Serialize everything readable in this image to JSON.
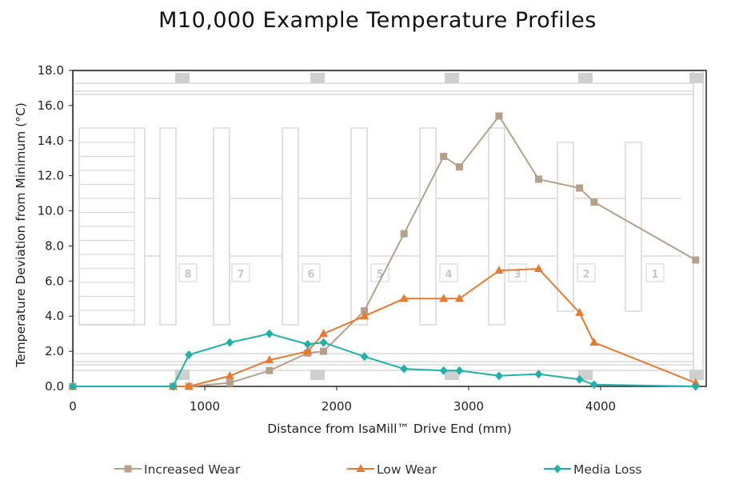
{
  "chart_data": {
    "type": "line",
    "title": "M10,000 Example Temperature Profiles",
    "xlabel": "Distance from IsaMill™ Drive End (mm)",
    "ylabel": "Temperature Deviation from Minimum (°C)",
    "xlim": [
      0,
      4800
    ],
    "ylim": [
      0,
      18
    ],
    "x_ticks": [
      "0",
      "1000",
      "2000",
      "3000",
      "4000"
    ],
    "y_ticks": [
      "0.0",
      "2.0",
      "4.0",
      "6.0",
      "8.0",
      "10.0",
      "12.0",
      "14.0",
      "16.0",
      "18.0"
    ],
    "grid": false,
    "legend": "bottom",
    "background_disc_labels": [
      "8",
      "7",
      "6",
      "5",
      "4",
      "3",
      "2",
      "1"
    ],
    "series": [
      {
        "name": "Increased Wear",
        "color": "#b5a08a",
        "marker": "square",
        "x": [
          0,
          760,
          880,
          1190,
          1490,
          1780,
          1900,
          2210,
          2510,
          2810,
          2930,
          3230,
          3530,
          3840,
          3950,
          4720
        ],
        "y": [
          0.0,
          0.0,
          0.0,
          0.2,
          0.9,
          1.9,
          2.0,
          4.3,
          8.7,
          13.1,
          12.5,
          15.4,
          11.8,
          11.3,
          10.5,
          7.2
        ]
      },
      {
        "name": "Low Wear",
        "color": "#e8792f",
        "marker": "triangle",
        "x": [
          0,
          760,
          880,
          1190,
          1490,
          1780,
          1900,
          2210,
          2510,
          2810,
          2930,
          3230,
          3530,
          3840,
          3950,
          4720
        ],
        "y": [
          0.0,
          0.0,
          0.0,
          0.6,
          1.5,
          2.0,
          3.0,
          4.0,
          5.0,
          5.0,
          5.0,
          6.6,
          6.7,
          4.2,
          2.5,
          0.2
        ]
      },
      {
        "name": "Media Loss",
        "color": "#20b2aa",
        "marker": "diamond",
        "x": [
          0,
          760,
          880,
          1190,
          1490,
          1780,
          1900,
          2210,
          2510,
          2810,
          2930,
          3230,
          3530,
          3840,
          3950,
          4720
        ],
        "y": [
          0.0,
          0.0,
          1.8,
          2.5,
          3.0,
          2.4,
          2.5,
          1.7,
          1.0,
          0.9,
          0.9,
          0.6,
          0.7,
          0.4,
          0.1,
          0.0
        ]
      }
    ]
  }
}
